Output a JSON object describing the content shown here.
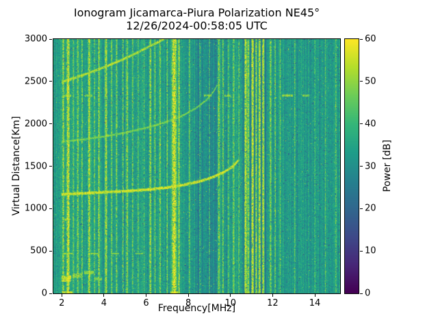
{
  "chart_data": {
    "type": "heatmap",
    "title": "Ionogram Jicamarca-Piura Polarization NE45°",
    "subtitle": "12/26/2024-00:58:05 UTC",
    "xlabel": "Frequency[MHz]",
    "ylabel": "Virtual Distance[Km]",
    "colorbar_label": "Power [dB]",
    "colormap": "viridis",
    "x_range_mhz": [
      1.6,
      15.2
    ],
    "y_range_km": [
      0,
      3000
    ],
    "power_range_db": [
      0,
      60
    ],
    "xticks": [
      2,
      4,
      6,
      8,
      10,
      12,
      14
    ],
    "yticks": [
      0,
      500,
      1000,
      1500,
      2000,
      2500,
      3000
    ],
    "colorbar_ticks": [
      0,
      10,
      20,
      30,
      40,
      50,
      60
    ],
    "background": {
      "mean_db": 33,
      "noise_db": 7,
      "column_streak_db": 4.5
    },
    "dark_band_mhz": [
      8.35,
      9.4
    ],
    "echo_traces": [
      {
        "name": "f-region-echo",
        "power_db": 58,
        "thickness_km": 36,
        "points": [
          [
            2.0,
            1168
          ],
          [
            3.0,
            1180
          ],
          [
            4.0,
            1192
          ],
          [
            5.0,
            1205
          ],
          [
            6.0,
            1222
          ],
          [
            7.0,
            1248
          ],
          [
            7.8,
            1280
          ],
          [
            8.6,
            1325
          ],
          [
            9.2,
            1375
          ],
          [
            9.7,
            1432
          ],
          [
            10.1,
            1495
          ],
          [
            10.35,
            1560
          ]
        ]
      },
      {
        "name": "f-region-second-hop",
        "power_db": 50,
        "thickness_km": 28,
        "points": [
          [
            2.0,
            1790
          ],
          [
            3.0,
            1815
          ],
          [
            4.0,
            1850
          ],
          [
            5.0,
            1895
          ],
          [
            6.0,
            1952
          ],
          [
            7.0,
            2025
          ],
          [
            7.8,
            2105
          ],
          [
            8.4,
            2190
          ],
          [
            8.9,
            2290
          ],
          [
            9.2,
            2380
          ],
          [
            9.4,
            2470
          ]
        ]
      },
      {
        "name": "f-region-third-hop",
        "power_db": 55,
        "thickness_km": 34,
        "points": [
          [
            2.0,
            2495
          ],
          [
            2.6,
            2540
          ],
          [
            3.2,
            2592
          ],
          [
            3.8,
            2648
          ],
          [
            4.4,
            2708
          ],
          [
            5.0,
            2772
          ],
          [
            5.6,
            2842
          ],
          [
            6.2,
            2918
          ],
          [
            6.8,
            2995
          ],
          [
            7.05,
            3030
          ]
        ]
      }
    ],
    "rfi_stripes": [
      {
        "mhz": 2.07,
        "width": 0.1,
        "db": 52
      },
      {
        "mhz": 2.3,
        "width": 0.14,
        "db": 57
      },
      {
        "mhz": 2.55,
        "width": 0.08,
        "db": 48
      },
      {
        "mhz": 2.76,
        "width": 0.1,
        "db": 50
      },
      {
        "mhz": 2.96,
        "width": 0.08,
        "db": 48
      },
      {
        "mhz": 3.3,
        "width": 0.12,
        "db": 54
      },
      {
        "mhz": 3.55,
        "width": 0.08,
        "db": 47
      },
      {
        "mhz": 3.76,
        "width": 0.1,
        "db": 51
      },
      {
        "mhz": 4.1,
        "width": 0.12,
        "db": 53
      },
      {
        "mhz": 4.36,
        "width": 0.08,
        "db": 48
      },
      {
        "mhz": 4.6,
        "width": 0.08,
        "db": 50
      },
      {
        "mhz": 4.9,
        "width": 0.08,
        "db": 48
      },
      {
        "mhz": 5.1,
        "width": 0.1,
        "db": 51
      },
      {
        "mhz": 5.36,
        "width": 0.08,
        "db": 47
      },
      {
        "mhz": 5.62,
        "width": 0.07,
        "db": 46
      },
      {
        "mhz": 5.9,
        "width": 0.07,
        "db": 45
      },
      {
        "mhz": 6.2,
        "width": 0.1,
        "db": 52
      },
      {
        "mhz": 6.42,
        "width": 0.08,
        "db": 48
      },
      {
        "mhz": 6.66,
        "width": 0.08,
        "db": 50
      },
      {
        "mhz": 7.0,
        "width": 0.08,
        "db": 48
      },
      {
        "mhz": 7.33,
        "width": 0.22,
        "db": 58
      },
      {
        "mhz": 7.56,
        "width": 0.1,
        "db": 52
      },
      {
        "mhz": 8.05,
        "width": 0.08,
        "db": 47
      },
      {
        "mhz": 8.55,
        "width": 0.06,
        "db": 44
      },
      {
        "mhz": 9.0,
        "width": 0.06,
        "db": 44
      },
      {
        "mhz": 9.45,
        "width": 0.1,
        "db": 50
      },
      {
        "mhz": 9.65,
        "width": 0.08,
        "db": 48
      },
      {
        "mhz": 9.9,
        "width": 0.07,
        "db": 46
      },
      {
        "mhz": 10.15,
        "width": 0.09,
        "db": 49
      },
      {
        "mhz": 10.4,
        "width": 0.07,
        "db": 47
      },
      {
        "mhz": 10.72,
        "width": 0.11,
        "db": 56
      },
      {
        "mhz": 10.84,
        "width": 0.08,
        "db": 53
      },
      {
        "mhz": 11.05,
        "width": 0.11,
        "db": 57
      },
      {
        "mhz": 11.22,
        "width": 0.08,
        "db": 53
      },
      {
        "mhz": 11.38,
        "width": 0.1,
        "db": 56
      },
      {
        "mhz": 11.55,
        "width": 0.1,
        "db": 55
      },
      {
        "mhz": 11.9,
        "width": 0.09,
        "db": 50
      },
      {
        "mhz": 12.12,
        "width": 0.07,
        "db": 48
      },
      {
        "mhz": 12.36,
        "width": 0.07,
        "db": 46
      },
      {
        "mhz": 13.05,
        "width": 0.07,
        "db": 45
      },
      {
        "mhz": 14.0,
        "width": 0.06,
        "db": 44
      },
      {
        "mhz": 14.5,
        "width": 0.07,
        "db": 45
      },
      {
        "mhz": 15.0,
        "width": 0.07,
        "db": 46
      }
    ],
    "dark_stripes": [
      {
        "mhz": 10.62,
        "width": 0.06,
        "db": 16
      },
      {
        "mhz": 10.95,
        "width": 0.05,
        "db": 13
      },
      {
        "mhz": 11.14,
        "width": 0.05,
        "db": 14
      },
      {
        "mhz": 11.3,
        "width": 0.04,
        "db": 15
      },
      {
        "mhz": 11.47,
        "width": 0.05,
        "db": 13
      },
      {
        "mhz": 11.66,
        "width": 0.07,
        "db": 14
      },
      {
        "mhz": 12.24,
        "width": 0.04,
        "db": 22
      }
    ],
    "horizontal_dashes": [
      {
        "mhz": [
          2.05,
          2.45
        ],
        "km": 2330,
        "h_km": 22,
        "db": 51
      },
      {
        "mhz": [
          3.05,
          3.45
        ],
        "km": 2330,
        "h_km": 22,
        "db": 50
      },
      {
        "mhz": [
          8.75,
          9.1
        ],
        "km": 2330,
        "h_km": 22,
        "db": 50
      },
      {
        "mhz": [
          9.7,
          10.05
        ],
        "km": 2330,
        "h_km": 22,
        "db": 50
      },
      {
        "mhz": [
          12.45,
          12.95
        ],
        "km": 2330,
        "h_km": 22,
        "db": 51
      },
      {
        "mhz": [
          13.4,
          13.75
        ],
        "km": 2330,
        "h_km": 22,
        "db": 49
      },
      {
        "mhz": [
          2.05,
          2.4
        ],
        "km": 870,
        "h_km": 22,
        "db": 50
      },
      {
        "mhz": [
          2.05,
          2.5
        ],
        "km": 470,
        "h_km": 22,
        "db": 51
      },
      {
        "mhz": [
          3.35,
          3.75
        ],
        "km": 470,
        "h_km": 22,
        "db": 50
      },
      {
        "mhz": [
          4.35,
          4.7
        ],
        "km": 470,
        "h_km": 20,
        "db": 49
      },
      {
        "mhz": [
          5.5,
          5.85
        ],
        "km": 470,
        "h_km": 20,
        "db": 48
      },
      {
        "mhz": [
          2.0,
          2.45
        ],
        "km": 175,
        "h_km": 70,
        "db": 55
      },
      {
        "mhz": [
          2.5,
          2.95
        ],
        "km": 210,
        "h_km": 55,
        "db": 51
      },
      {
        "mhz": [
          3.05,
          3.5
        ],
        "km": 245,
        "h_km": 45,
        "db": 49
      },
      {
        "mhz": [
          3.55,
          3.9
        ],
        "km": 170,
        "h_km": 40,
        "db": 47
      },
      {
        "mhz": [
          2.0,
          2.5
        ],
        "km": 14,
        "h_km": 28,
        "db": 55
      },
      {
        "mhz": [
          7.15,
          7.5
        ],
        "km": 14,
        "h_km": 28,
        "db": 56
      },
      {
        "mhz": [
          10.72,
          11.6
        ],
        "km": 14,
        "h_km": 28,
        "db": 50
      }
    ]
  }
}
